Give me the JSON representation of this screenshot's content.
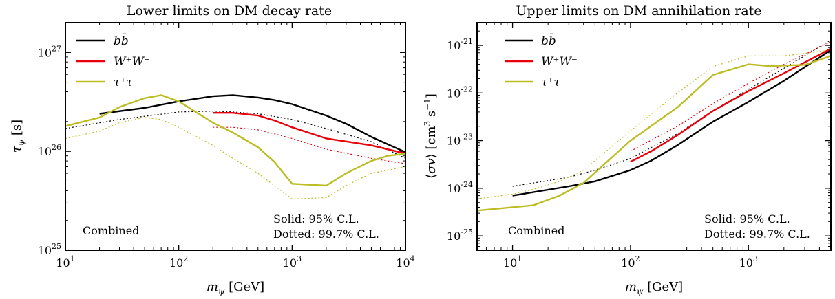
{
  "chart_data": [
    {
      "type": "line",
      "title": "Lower limits on DM decay rate",
      "xlabel": "m_ψ [GeV]",
      "ylabel": "τ_ψ [s]",
      "xscale": "log",
      "yscale": "log",
      "xlim": [
        10,
        10000
      ],
      "ylim": [
        1e+25,
        2e+27
      ],
      "x_ticks": [
        {
          "value": 10,
          "label": "10",
          "exp": "1"
        },
        {
          "value": 100,
          "label": "10",
          "exp": "2"
        },
        {
          "value": 1000,
          "label": "10",
          "exp": "3"
        },
        {
          "value": 10000,
          "label": "10",
          "exp": "4"
        }
      ],
      "y_ticks": [
        {
          "value": 1e+25,
          "label": "10",
          "exp": "25"
        },
        {
          "value": 1e+26,
          "label": "10",
          "exp": "26"
        },
        {
          "value": 1e+27,
          "label": "10",
          "exp": "27"
        }
      ],
      "legend_position": "top-left",
      "annotations": {
        "region": "Combined",
        "solid": "Solid: 95% C.L.",
        "dotted": "Dotted: 99.7% C.L."
      },
      "series": [
        {
          "name": "bb̄",
          "color": "#000000",
          "style": "solid",
          "x": [
            20,
            50,
            100,
            200,
            300,
            500,
            700,
            1000,
            2000,
            3000,
            5000,
            10000
          ],
          "y": [
            2.4e+26,
            2.75e+26,
            3.2e+26,
            3.6e+26,
            3.7e+26,
            3.5e+26,
            3.3e+26,
            3e+26,
            2.3e+26,
            1.9e+26,
            1.4e+26,
            9.8e+25
          ]
        },
        {
          "name": "W⁺W⁻",
          "color": "#e8000b",
          "style": "solid",
          "x": [
            200,
            300,
            500,
            700,
            1000,
            2000,
            5000,
            10000
          ],
          "y": [
            2.45e+26,
            2.45e+26,
            2.3e+26,
            2.05e+26,
            1.75e+26,
            1.35e+26,
            1.15e+26,
            9.5e+25
          ]
        },
        {
          "name": "τ⁺τ⁻",
          "color": "#bcbd22",
          "style": "solid",
          "x": [
            10,
            20,
            30,
            50,
            70,
            100,
            200,
            300,
            500,
            700,
            1000,
            2000,
            3000,
            5000,
            7000,
            10000
          ],
          "y": [
            1.8e+26,
            2.2e+26,
            2.8e+26,
            3.45e+26,
            3.7e+26,
            3.2e+26,
            1.95e+26,
            1.55e+26,
            1.1e+26,
            7.8e+25,
            4.7e+25,
            4.5e+25,
            6e+25,
            8e+25,
            9e+25,
            9.5e+25
          ]
        },
        {
          "color": "#000000",
          "style": "dotted",
          "x": [
            10,
            30,
            100,
            200,
            300,
            500,
            1000,
            2000,
            5000,
            10000
          ],
          "y": [
            1.7e+26,
            2.1e+26,
            2.5e+26,
            2.55e+26,
            2.5e+26,
            2.4e+26,
            2.1e+26,
            1.7e+26,
            1.25e+26,
            8.5e+25
          ]
        },
        {
          "color": "#e8000b",
          "style": "dotted",
          "x": [
            200,
            300,
            500,
            700,
            1000,
            2000,
            5000,
            10000
          ],
          "y": [
            1.75e+26,
            1.75e+26,
            1.65e+26,
            1.5e+26,
            1.35e+26,
            1.05e+26,
            8.5e+25,
            7.5e+25
          ]
        },
        {
          "color": "#bcbd22",
          "style": "dotted",
          "x": [
            10,
            20,
            30,
            50,
            70,
            100,
            200,
            300,
            500,
            1000,
            2000,
            3000,
            5000,
            10000
          ],
          "y": [
            1.35e+26,
            1.6e+26,
            1.95e+26,
            2.2e+26,
            2.1e+26,
            1.75e+26,
            1.15e+26,
            8.5e+25,
            6e+25,
            3.3e+25,
            3.4e+25,
            4.5e+25,
            6e+25,
            7e+25
          ]
        }
      ]
    },
    {
      "type": "line",
      "title": "Upper limits on DM annihilation rate",
      "xlabel": "m_ψ [GeV]",
      "ylabel": "⟨σv⟩ [cm³ s⁻¹]",
      "xscale": "log",
      "yscale": "log",
      "xlim": [
        5,
        5000
      ],
      "ylim": [
        5e-26,
        3e-21
      ],
      "x_ticks": [
        {
          "value": 10,
          "label": "10",
          "exp": "1"
        },
        {
          "value": 100,
          "label": "10",
          "exp": "2"
        },
        {
          "value": 1000,
          "label": "10",
          "exp": "3"
        }
      ],
      "y_ticks": [
        {
          "value": 1e-25,
          "label": "10",
          "exp": "-25"
        },
        {
          "value": 1e-24,
          "label": "10",
          "exp": "-24"
        },
        {
          "value": 1e-23,
          "label": "10",
          "exp": "-23"
        },
        {
          "value": 1e-22,
          "label": "10",
          "exp": "-22"
        },
        {
          "value": 1e-21,
          "label": "10",
          "exp": "-21"
        }
      ],
      "legend_position": "top-left",
      "annotations": {
        "region": "Combined",
        "solid": "Solid: 95% C.L.",
        "dotted": "Dotted: 99.7% C.L."
      },
      "series": [
        {
          "name": "bb̄",
          "color": "#000000",
          "style": "solid",
          "x": [
            10,
            30,
            50,
            100,
            150,
            250,
            500,
            1000,
            2000,
            5000
          ],
          "y": [
            7e-25,
            1.1e-24,
            1.4e-24,
            2.4e-24,
            3.8e-24,
            8e-24,
            2.5e-23,
            6.5e-23,
            1.8e-22,
            8e-22
          ]
        },
        {
          "name": "W⁺W⁻",
          "color": "#e8000b",
          "style": "solid",
          "x": [
            100,
            150,
            250,
            500,
            1000,
            2000,
            5000
          ],
          "y": [
            3.6e-24,
            6e-24,
            1.3e-23,
            4.2e-23,
            1.1e-22,
            2.6e-22,
            8.5e-22
          ]
        },
        {
          "name": "τ⁺τ⁻",
          "color": "#bcbd22",
          "style": "solid",
          "x": [
            5,
            10,
            15,
            25,
            40,
            100,
            250,
            500,
            1000,
            1500,
            3000,
            5000
          ],
          "y": [
            3.4e-25,
            4e-25,
            4.4e-25,
            7e-25,
            1.3e-24,
            1e-23,
            5e-23,
            2.4e-22,
            4e-22,
            3.7e-22,
            3.9e-22,
            6e-22
          ]
        },
        {
          "color": "#000000",
          "style": "dotted",
          "x": [
            10,
            30,
            50,
            100,
            250,
            500,
            1000,
            2000,
            5000
          ],
          "y": [
            1.1e-24,
            1.7e-24,
            2.4e-24,
            4.2e-24,
            1.4e-23,
            4.2e-23,
            1.2e-22,
            3.3e-22,
            1.3e-21
          ]
        },
        {
          "color": "#e8000b",
          "style": "dotted",
          "x": [
            100,
            250,
            500,
            1000,
            2000,
            5000
          ],
          "y": [
            6e-24,
            2e-23,
            6e-23,
            1.6e-22,
            4e-22,
            1.2e-21
          ]
        },
        {
          "color": "#bcbd22",
          "style": "dotted",
          "x": [
            5,
            10,
            15,
            25,
            40,
            100,
            250,
            500,
            1000,
            2000,
            5000
          ],
          "y": [
            6e-25,
            7.5e-25,
            9.5e-25,
            1.4e-24,
            2.4e-24,
            1.6e-23,
            1e-22,
            3.6e-22,
            6e-22,
            6e-22,
            8e-22
          ]
        }
      ]
    }
  ]
}
